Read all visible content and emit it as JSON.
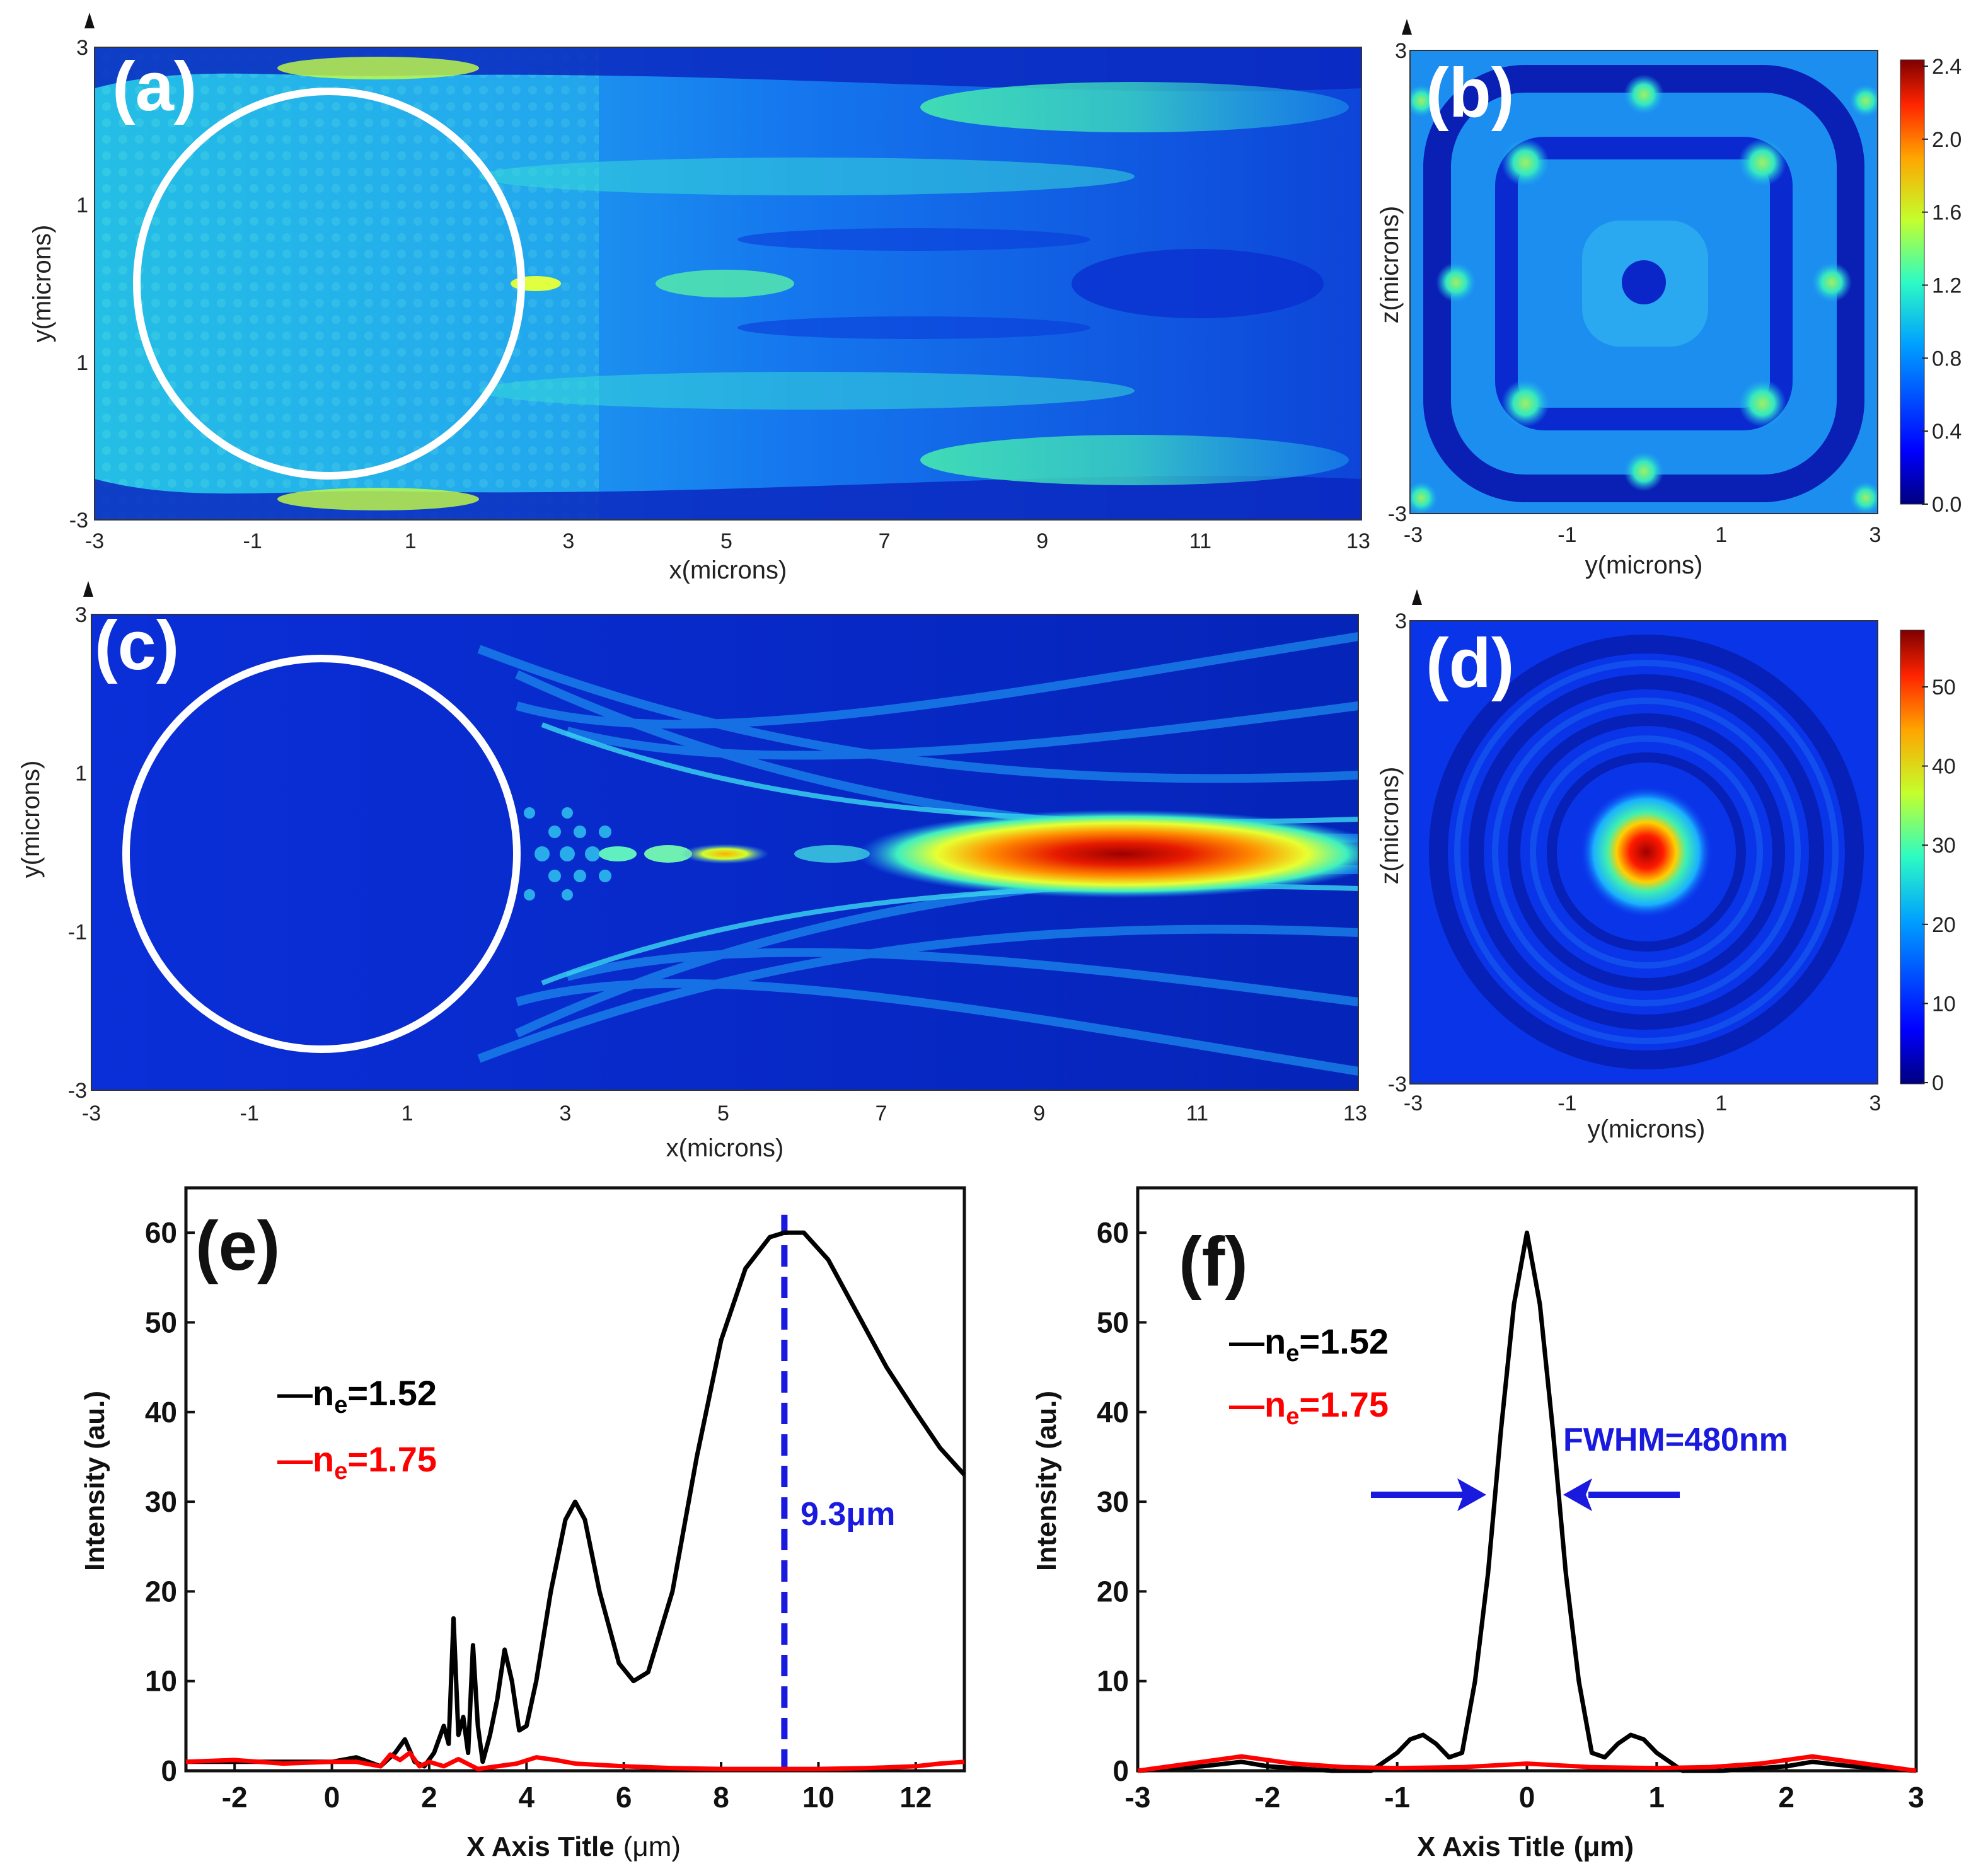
{
  "chart_data": [
    {
      "id": "a",
      "type": "heatmap",
      "panel_label": "(a)",
      "xlabel": "x(microns)",
      "ylabel": "y(microns)",
      "xlim": [
        -3,
        13
      ],
      "ylim": [
        -3,
        3
      ],
      "x_ticks": [
        "-3",
        "-1",
        "1",
        "3",
        "5",
        "7",
        "9",
        "11",
        "13"
      ],
      "y_ticks": [
        "-3",
        "1",
        "1",
        "3"
      ],
      "sphere_outline": "white circle, centre (0,0), radius 2.5"
    },
    {
      "id": "b",
      "type": "heatmap",
      "panel_label": "(b)",
      "xlabel": "y(microns)",
      "ylabel": "z(microns)",
      "x_ticks": [
        "-3",
        "-1",
        "1",
        "3"
      ],
      "y_ticks": [
        "-3",
        "3"
      ],
      "colorbar_ticks": [
        "0.0",
        "0.4",
        "0.8",
        "1.2",
        "1.6",
        "2.0",
        "2.4"
      ]
    },
    {
      "id": "c",
      "type": "heatmap",
      "panel_label": "(c)",
      "xlabel": "x(microns)",
      "ylabel": "y(microns)",
      "xlim": [
        -3,
        13
      ],
      "ylim": [
        -3,
        3
      ],
      "x_ticks": [
        "-3",
        "-1",
        "1",
        "3",
        "5",
        "7",
        "9",
        "11",
        "13"
      ],
      "y_ticks": [
        "-3",
        "-1",
        "1",
        "3"
      ],
      "sphere_outline": "white circle, centre (0,0), radius 2.5"
    },
    {
      "id": "d",
      "type": "heatmap",
      "panel_label": "(d)",
      "xlabel": "y(microns)",
      "ylabel": "z(microns)",
      "x_ticks": [
        "-3",
        "-1",
        "1",
        "3"
      ],
      "y_ticks": [
        "-3",
        "3"
      ],
      "colorbar_ticks": [
        "0",
        "10",
        "20",
        "30",
        "40",
        "50"
      ]
    },
    {
      "id": "e",
      "type": "line",
      "panel_label": "(e)",
      "title": "",
      "xlabel": "X Axis Title",
      "xlabel_unit": "(μm)",
      "ylabel": "Intensity (au.)",
      "xlim": [
        -3,
        13
      ],
      "ylim": [
        0,
        65
      ],
      "x_ticks": [
        "-2",
        "0",
        "2",
        "4",
        "6",
        "8",
        "10",
        "12"
      ],
      "y_ticks": [
        "0",
        "10",
        "20",
        "30",
        "40",
        "50",
        "60"
      ],
      "legend_lines": [
        {
          "prefix": "—n",
          "sub": "e",
          "suffix": "=1.52"
        },
        {
          "prefix": "—n",
          "sub": "e",
          "suffix": "=1.75"
        }
      ],
      "annotation": {
        "text": "9.3μm",
        "x": 9.3
      },
      "series": [
        {
          "name": "ne=1.52",
          "color": "#000000",
          "x": [
            -3,
            -2,
            -1,
            0,
            0.5,
            1,
            1.3,
            1.5,
            1.7,
            1.9,
            2.1,
            2.3,
            2.4,
            2.5,
            2.6,
            2.7,
            2.8,
            2.9,
            3.0,
            3.1,
            3.25,
            3.4,
            3.55,
            3.7,
            3.85,
            4.0,
            4.2,
            4.5,
            4.8,
            5.0,
            5.2,
            5.5,
            5.9,
            6.2,
            6.5,
            7.0,
            7.5,
            8.0,
            8.5,
            9.0,
            9.3,
            9.7,
            10.2,
            10.8,
            11.4,
            12.0,
            12.5,
            13.0
          ],
          "y": [
            1,
            1,
            1,
            1,
            1.5,
            0.5,
            2,
            3.5,
            1,
            0.5,
            2,
            5,
            3,
            17,
            4,
            6,
            2,
            14,
            5,
            1,
            4,
            8,
            13.5,
            10,
            4.5,
            5,
            10,
            20,
            28,
            30,
            28,
            20,
            12,
            10,
            11,
            20,
            35,
            48,
            56,
            59.5,
            60,
            60,
            57,
            51,
            45,
            40,
            36,
            33
          ]
        },
        {
          "name": "ne=1.75",
          "color": "#ff0000",
          "x": [
            -3,
            -2,
            -1,
            0,
            0.5,
            1,
            1.2,
            1.4,
            1.6,
            1.8,
            2.0,
            2.3,
            2.6,
            3.0,
            3.4,
            3.8,
            4.2,
            4.6,
            5.0,
            6.0,
            7.0,
            8.0,
            9.0,
            10.0,
            11.0,
            12.0,
            12.5,
            13.0
          ],
          "y": [
            1,
            1.2,
            0.8,
            1,
            1,
            0.5,
            1.8,
            1.2,
            2.0,
            0.5,
            1,
            0.5,
            1.3,
            0.2,
            0.5,
            0.8,
            1.5,
            1.2,
            0.8,
            0.5,
            0.3,
            0.2,
            0.2,
            0.2,
            0.3,
            0.5,
            0.8,
            1.0
          ]
        }
      ]
    },
    {
      "id": "f",
      "type": "line",
      "panel_label": "(f)",
      "title": "",
      "xlabel": "X Axis Title",
      "xlabel_unit": "(μm)",
      "ylabel": "Intensity (au.)",
      "xlim": [
        -3,
        3
      ],
      "ylim": [
        0,
        65
      ],
      "x_ticks": [
        "-3",
        "-2",
        "-1",
        "0",
        "1",
        "2",
        "3"
      ],
      "y_ticks": [
        "0",
        "10",
        "20",
        "30",
        "40",
        "50",
        "60"
      ],
      "legend_lines": [
        {
          "prefix": "—n",
          "sub": "e",
          "suffix": "=1.52"
        },
        {
          "prefix": "—n",
          "sub": "e",
          "suffix": "=1.75"
        }
      ],
      "annotation": {
        "text": "FWHM=480nm"
      },
      "series": [
        {
          "name": "ne=1.52",
          "color": "#000000",
          "x": [
            -3,
            -2.5,
            -2.2,
            -2,
            -1.5,
            -1.2,
            -1.0,
            -0.9,
            -0.8,
            -0.7,
            -0.6,
            -0.5,
            -0.4,
            -0.3,
            -0.2,
            -0.1,
            0,
            0.1,
            0.2,
            0.3,
            0.4,
            0.5,
            0.6,
            0.7,
            0.8,
            0.9,
            1.0,
            1.2,
            1.5,
            2.0,
            2.2,
            2.5,
            3.0
          ],
          "y": [
            0,
            0.5,
            1,
            0.5,
            0,
            0,
            2,
            3.5,
            4,
            3,
            1.5,
            2,
            10,
            22,
            38,
            52,
            60,
            52,
            38,
            22,
            10,
            2,
            1.5,
            3,
            4,
            3.5,
            2,
            0,
            0,
            0.5,
            1,
            0.5,
            0
          ]
        },
        {
          "name": "ne=1.75",
          "color": "#ff0000",
          "x": [
            -3,
            -2.6,
            -2.2,
            -1.8,
            -1.4,
            -1.0,
            -0.5,
            0,
            0.5,
            1.0,
            1.4,
            1.8,
            2.2,
            2.6,
            3.0
          ],
          "y": [
            0,
            0.8,
            1.6,
            0.8,
            0.4,
            0.3,
            0.4,
            0.8,
            0.4,
            0.3,
            0.4,
            0.8,
            1.6,
            0.8,
            0
          ]
        }
      ]
    }
  ]
}
